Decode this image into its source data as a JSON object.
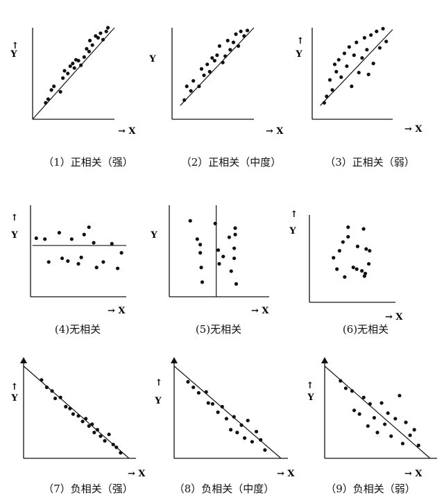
{
  "figure": {
    "axis_labels": {
      "x": "X",
      "y": "Y",
      "arrow": "→",
      "up_arrow": "↑"
    }
  },
  "chart_data": [
    {
      "type": "scatter",
      "caption": "（1）正相关（强）",
      "xlabel": "X",
      "ylabel": "Y",
      "xlim": [
        0,
        10
      ],
      "ylim": [
        0,
        10
      ],
      "trend": {
        "x": [
          0,
          10
        ],
        "y": [
          0,
          10
        ]
      },
      "points": [
        [
          1.6,
          1.8
        ],
        [
          1.9,
          2.2
        ],
        [
          2.3,
          3.2
        ],
        [
          2.6,
          3.6
        ],
        [
          3.4,
          3.0
        ],
        [
          3.7,
          4.5
        ],
        [
          3.9,
          5.3
        ],
        [
          4.3,
          5.0
        ],
        [
          4.6,
          5.8
        ],
        [
          4.9,
          6.1
        ],
        [
          5.1,
          5.6
        ],
        [
          5.3,
          6.5
        ],
        [
          5.6,
          6.4
        ],
        [
          5.9,
          5.9
        ],
        [
          6.3,
          6.8
        ],
        [
          6.6,
          7.7
        ],
        [
          6.9,
          7.4
        ],
        [
          7.0,
          8.6
        ],
        [
          7.3,
          8.1
        ],
        [
          7.7,
          9.1
        ],
        [
          8.0,
          8.9
        ],
        [
          8.3,
          9.4
        ],
        [
          8.6,
          8.7
        ],
        [
          9.0,
          9.6
        ],
        [
          9.2,
          10.0
        ]
      ]
    },
    {
      "type": "scatter",
      "caption": "（2）正相关（中度）",
      "xlabel": "X",
      "ylabel": "Y",
      "xlim": [
        0,
        10
      ],
      "ylim": [
        0,
        10
      ],
      "trend": {
        "x": [
          1,
          10
        ],
        "y": [
          1.5,
          10
        ]
      },
      "points": [
        [
          1.5,
          2.1
        ],
        [
          1.8,
          3.6
        ],
        [
          2.3,
          3.1
        ],
        [
          2.6,
          4.2
        ],
        [
          3.3,
          3.6
        ],
        [
          3.6,
          5.5
        ],
        [
          3.9,
          4.8
        ],
        [
          4.3,
          6.0
        ],
        [
          4.6,
          5.2
        ],
        [
          4.9,
          6.7
        ],
        [
          5.2,
          6.4
        ],
        [
          5.5,
          7.0
        ],
        [
          5.8,
          8.0
        ],
        [
          6.2,
          6.2
        ],
        [
          6.5,
          6.9
        ],
        [
          6.8,
          8.6
        ],
        [
          7.1,
          7.6
        ],
        [
          7.5,
          8.4
        ],
        [
          7.8,
          9.3
        ],
        [
          8.1,
          8.0
        ],
        [
          8.4,
          9.6
        ],
        [
          8.8,
          9.1
        ],
        [
          9.2,
          9.7
        ]
      ]
    },
    {
      "type": "scatter",
      "caption": "（3）正相关（弱）",
      "xlabel": "X",
      "ylabel": "Y",
      "xlim": [
        0,
        10
      ],
      "ylim": [
        0,
        10
      ],
      "trend": {
        "x": [
          1,
          10
        ],
        "y": [
          1.5,
          9.8
        ]
      },
      "points": [
        [
          1.5,
          1.8
        ],
        [
          1.8,
          2.5
        ],
        [
          2.2,
          4.3
        ],
        [
          2.5,
          3.2
        ],
        [
          2.8,
          6.0
        ],
        [
          3.0,
          5.2
        ],
        [
          3.3,
          6.5
        ],
        [
          3.6,
          4.6
        ],
        [
          4.0,
          7.2
        ],
        [
          4.3,
          5.8
        ],
        [
          4.6,
          7.9
        ],
        [
          4.9,
          3.6
        ],
        [
          5.2,
          7.0
        ],
        [
          5.5,
          8.4
        ],
        [
          5.8,
          5.1
        ],
        [
          6.2,
          6.7
        ],
        [
          6.5,
          8.9
        ],
        [
          6.8,
          7.6
        ],
        [
          7.0,
          4.9
        ],
        [
          7.3,
          9.2
        ],
        [
          7.6,
          6.1
        ],
        [
          8.0,
          9.6
        ],
        [
          8.4,
          7.8
        ],
        [
          8.8,
          9.9
        ],
        [
          9.2,
          8.5
        ]
      ]
    },
    {
      "type": "scatter",
      "caption": "(4)无相关",
      "xlabel": "X",
      "ylabel": "Y",
      "xlim": [
        0,
        10
      ],
      "ylim": [
        0,
        10
      ],
      "trend": {
        "x": [
          0.2,
          10
        ],
        "y": [
          5.6,
          5.6
        ]
      },
      "points": [
        [
          0.6,
          6.4
        ],
        [
          1.5,
          6.3
        ],
        [
          1.9,
          3.8
        ],
        [
          3.0,
          7.0
        ],
        [
          3.3,
          4.2
        ],
        [
          3.9,
          3.9
        ],
        [
          4.3,
          6.3
        ],
        [
          5.0,
          3.6
        ],
        [
          5.3,
          4.3
        ],
        [
          5.6,
          6.8
        ],
        [
          6.1,
          7.6
        ],
        [
          6.6,
          5.9
        ],
        [
          6.9,
          3.2
        ],
        [
          7.6,
          3.8
        ],
        [
          8.5,
          5.8
        ],
        [
          9.1,
          3.1
        ],
        [
          9.5,
          4.8
        ]
      ]
    },
    {
      "type": "scatter",
      "caption": "(5)无相关",
      "xlabel": "X",
      "ylabel": "Y",
      "xlim": [
        0,
        10
      ],
      "ylim": [
        0,
        10
      ],
      "trend": {
        "x": [
          4.7,
          4.7
        ],
        "y": [
          0,
          10
        ]
      },
      "points": [
        [
          2.1,
          8.3
        ],
        [
          2.8,
          6.3
        ],
        [
          3.1,
          5.7
        ],
        [
          3.1,
          4.8
        ],
        [
          3.2,
          3.2
        ],
        [
          3.3,
          1.6
        ],
        [
          4.6,
          8.0
        ],
        [
          4.9,
          5.1
        ],
        [
          5.0,
          3.6
        ],
        [
          5.4,
          4.4
        ],
        [
          6.0,
          6.5
        ],
        [
          6.2,
          2.8
        ],
        [
          6.5,
          5.3
        ],
        [
          6.6,
          7.5
        ],
        [
          6.6,
          6.8
        ],
        [
          6.5,
          4.2
        ],
        [
          6.7,
          1.4
        ]
      ]
    },
    {
      "type": "scatter",
      "caption": "(6)无相关",
      "xlabel": "X",
      "ylabel": "Y",
      "xlim": [
        0,
        10
      ],
      "ylim": [
        0,
        10
      ],
      "points": [
        [
          2.8,
          5.1
        ],
        [
          3.2,
          3.8
        ],
        [
          3.5,
          5.9
        ],
        [
          3.9,
          6.9
        ],
        [
          4.1,
          2.9
        ],
        [
          4.5,
          7.5
        ],
        [
          4.5,
          8.6
        ],
        [
          5.1,
          4.0
        ],
        [
          5.5,
          3.8
        ],
        [
          5.6,
          6.4
        ],
        [
          6.1,
          3.6
        ],
        [
          6.3,
          8.4
        ],
        [
          6.5,
          3.3
        ],
        [
          6.4,
          3.0
        ],
        [
          6.9,
          4.4
        ],
        [
          7.0,
          5.9
        ],
        [
          6.6,
          6.1
        ]
      ]
    },
    {
      "type": "scatter",
      "caption": "（7）负相关（强）",
      "xlabel": "X",
      "ylabel": "Y",
      "xlim": [
        0,
        10
      ],
      "ylim": [
        0,
        10
      ],
      "trend": {
        "x": [
          0,
          10
        ],
        "y": [
          10,
          0
        ]
      },
      "points": [
        [
          1.7,
          8.5
        ],
        [
          2.2,
          7.7
        ],
        [
          2.7,
          7.3
        ],
        [
          3.0,
          6.5
        ],
        [
          3.5,
          6.6
        ],
        [
          4.0,
          5.6
        ],
        [
          4.4,
          5.4
        ],
        [
          4.7,
          4.8
        ],
        [
          5.2,
          4.6
        ],
        [
          5.6,
          4.0
        ],
        [
          5.9,
          4.3
        ],
        [
          6.2,
          3.5
        ],
        [
          6.5,
          3.7
        ],
        [
          6.7,
          2.8
        ],
        [
          7.0,
          3.1
        ],
        [
          7.3,
          2.4
        ],
        [
          7.7,
          1.9
        ],
        [
          8.1,
          2.6
        ],
        [
          8.5,
          1.5
        ],
        [
          8.8,
          1.2
        ],
        [
          9.2,
          0.6
        ]
      ]
    },
    {
      "type": "scatter",
      "caption": "（8）负相关（中度）",
      "xlabel": "X",
      "ylabel": "Y",
      "xlim": [
        0,
        10
      ],
      "ylim": [
        0,
        10
      ],
      "trend": {
        "x": [
          0,
          10
        ],
        "y": [
          10,
          0
        ]
      },
      "points": [
        [
          1.3,
          8.3
        ],
        [
          1.8,
          7.7
        ],
        [
          2.3,
          7.1
        ],
        [
          3.0,
          7.2
        ],
        [
          3.2,
          6.0
        ],
        [
          3.6,
          5.9
        ],
        [
          4.1,
          5.0
        ],
        [
          4.5,
          5.6
        ],
        [
          4.9,
          4.3
        ],
        [
          5.3,
          3.1
        ],
        [
          5.6,
          4.5
        ],
        [
          5.9,
          2.8
        ],
        [
          6.3,
          3.6
        ],
        [
          6.6,
          2.2
        ],
        [
          6.9,
          4.1
        ],
        [
          7.3,
          1.8
        ],
        [
          7.7,
          2.9
        ],
        [
          8.1,
          2.0
        ],
        [
          8.5,
          0.9
        ]
      ]
    },
    {
      "type": "scatter",
      "caption": "（9）负相关（弱）",
      "xlabel": "X",
      "ylabel": "Y",
      "xlim": [
        0,
        10
      ],
      "ylim": [
        0,
        10
      ],
      "trend": {
        "x": [
          0,
          10
        ],
        "y": [
          10,
          0
        ]
      },
      "points": [
        [
          1.5,
          8.4
        ],
        [
          2.0,
          7.6
        ],
        [
          2.6,
          7.3
        ],
        [
          2.8,
          5.2
        ],
        [
          3.3,
          4.8
        ],
        [
          3.7,
          6.6
        ],
        [
          4.1,
          3.5
        ],
        [
          4.3,
          5.9
        ],
        [
          4.7,
          4.4
        ],
        [
          5.0,
          2.8
        ],
        [
          5.4,
          6.0
        ],
        [
          5.7,
          3.7
        ],
        [
          6.0,
          4.9
        ],
        [
          6.3,
          2.4
        ],
        [
          6.7,
          4.3
        ],
        [
          7.1,
          6.8
        ],
        [
          7.4,
          1.6
        ],
        [
          7.7,
          3.9
        ],
        [
          8.1,
          2.5
        ],
        [
          8.5,
          3.1
        ],
        [
          8.9,
          1.4
        ]
      ]
    }
  ]
}
